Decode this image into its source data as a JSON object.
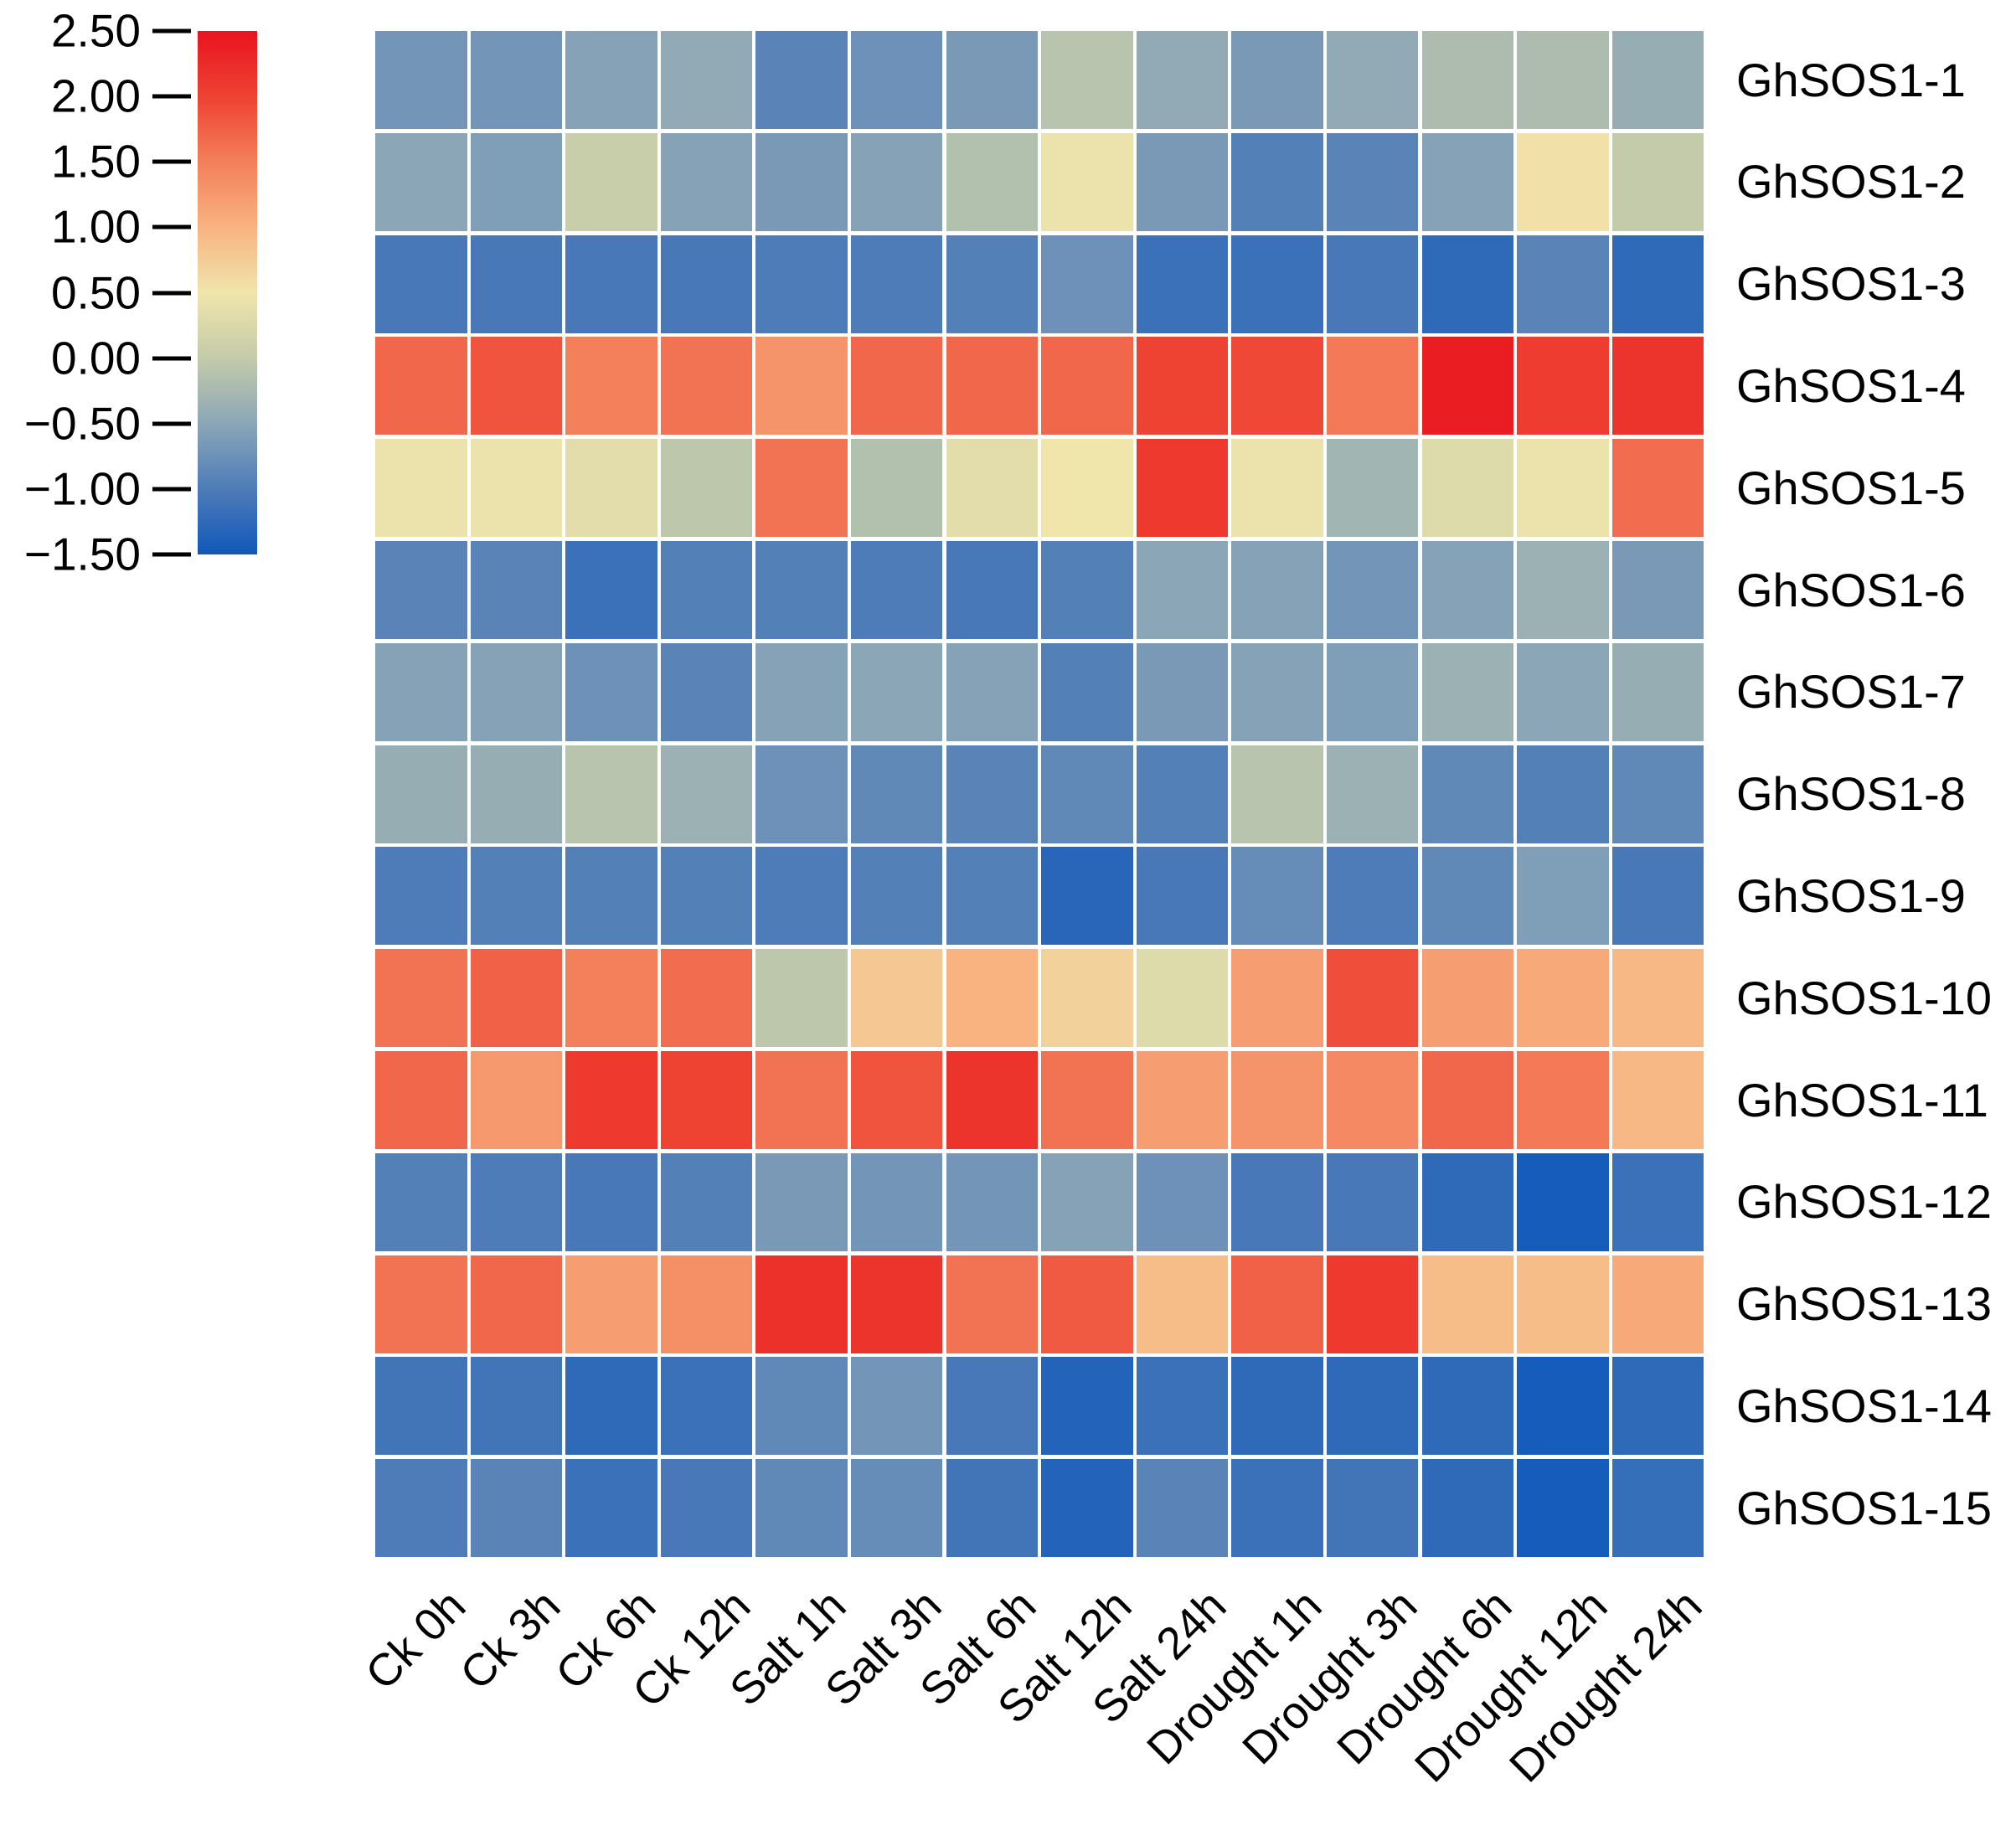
{
  "chart_data": {
    "type": "heatmap",
    "title": "",
    "rows": [
      "GhSOS1-1",
      "GhSOS1-2",
      "GhSOS1-3",
      "GhSOS1-4",
      "GhSOS1-5",
      "GhSOS1-6",
      "GhSOS1-7",
      "GhSOS1-8",
      "GhSOS1-9",
      "GhSOS1-10",
      "GhSOS1-11",
      "GhSOS1-12",
      "GhSOS1-13",
      "GhSOS1-14",
      "GhSOS1-15"
    ],
    "columns": [
      "Ck 0h",
      "Ck 3h",
      "Ck 6h",
      "Ck 12h",
      "Salt 1h",
      "Salt 3h",
      "Salt 6h",
      "Salt 12h",
      "Salt 24h",
      "Drought 1h",
      "Drought 3h",
      "Drought 6h",
      "Drought 12h",
      "Drought 24h"
    ],
    "values": [
      [
        -0.7,
        -0.7,
        -0.55,
        -0.45,
        -0.9,
        -0.75,
        -0.65,
        -0.1,
        -0.45,
        -0.65,
        -0.45,
        -0.2,
        -0.2,
        -0.4
      ],
      [
        -0.5,
        -0.6,
        0.05,
        -0.55,
        -0.65,
        -0.55,
        -0.15,
        0.45,
        -0.65,
        -0.95,
        -0.9,
        -0.55,
        0.55,
        0.0
      ],
      [
        -1.05,
        -1.05,
        -1.05,
        -1.05,
        -1.0,
        -1.0,
        -0.95,
        -0.75,
        -1.15,
        -1.15,
        -1.05,
        -1.25,
        -0.9,
        -1.25
      ],
      [
        1.7,
        1.85,
        1.5,
        1.6,
        1.3,
        1.7,
        1.7,
        1.7,
        2.0,
        1.95,
        1.55,
        2.4,
        2.05,
        2.15
      ],
      [
        0.45,
        0.45,
        0.35,
        -0.05,
        1.6,
        -0.15,
        0.35,
        0.5,
        2.1,
        0.45,
        -0.3,
        0.3,
        0.45,
        1.65
      ],
      [
        -0.9,
        -0.9,
        -1.15,
        -0.95,
        -0.95,
        -1.0,
        -1.05,
        -0.95,
        -0.5,
        -0.55,
        -0.7,
        -0.55,
        -0.35,
        -0.65
      ],
      [
        -0.55,
        -0.55,
        -0.75,
        -0.9,
        -0.55,
        -0.5,
        -0.55,
        -0.95,
        -0.65,
        -0.55,
        -0.6,
        -0.35,
        -0.5,
        -0.4
      ],
      [
        -0.4,
        -0.4,
        -0.1,
        -0.35,
        -0.75,
        -0.85,
        -0.9,
        -0.85,
        -0.95,
        -0.1,
        -0.35,
        -0.85,
        -0.95,
        -0.85
      ],
      [
        -1.0,
        -0.95,
        -0.95,
        -0.95,
        -1.0,
        -0.95,
        -0.95,
        -1.3,
        -1.05,
        -0.8,
        -1.0,
        -0.85,
        -0.6,
        -1.05
      ],
      [
        1.6,
        1.75,
        1.5,
        1.65,
        -0.05,
        0.8,
        1.0,
        0.7,
        0.3,
        1.2,
        1.9,
        1.2,
        1.1,
        0.95
      ],
      [
        1.7,
        1.25,
        2.1,
        2.0,
        1.6,
        1.85,
        2.15,
        1.6,
        1.2,
        1.3,
        1.4,
        1.7,
        1.55,
        0.95
      ],
      [
        -0.95,
        -1.0,
        -1.05,
        -0.95,
        -0.65,
        -0.7,
        -0.7,
        -0.55,
        -0.75,
        -1.05,
        -1.05,
        -1.25,
        -1.45,
        -1.15
      ],
      [
        1.6,
        1.7,
        1.2,
        1.35,
        2.2,
        2.15,
        1.6,
        1.8,
        0.9,
        1.75,
        2.1,
        0.9,
        0.9,
        1.1
      ],
      [
        -1.1,
        -1.1,
        -1.25,
        -1.15,
        -0.85,
        -0.7,
        -1.05,
        -1.35,
        -1.15,
        -1.25,
        -1.25,
        -1.25,
        -1.45,
        -1.25
      ],
      [
        -1.0,
        -0.9,
        -1.15,
        -1.05,
        -0.85,
        -0.8,
        -1.1,
        -1.35,
        -0.9,
        -1.15,
        -1.1,
        -1.25,
        -1.45,
        -1.2
      ]
    ],
    "value_range": [
      -1.5,
      2.5
    ],
    "colorbar_ticks": [
      "2.50",
      "2.00",
      "1.50",
      "1.00",
      "0.50",
      "0.00",
      "−0.50",
      "−1.00",
      "−1.50"
    ],
    "colormap_stops": [
      {
        "value": 2.5,
        "color": "#e9141f"
      },
      {
        "value": 2.0,
        "color": "#ee4232"
      },
      {
        "value": 1.5,
        "color": "#f37f5b"
      },
      {
        "value": 1.0,
        "color": "#f8b381"
      },
      {
        "value": 0.5,
        "color": "#f0e5ab"
      },
      {
        "value": 0.0,
        "color": "#c3cbaa"
      },
      {
        "value": -0.5,
        "color": "#8ba6b7"
      },
      {
        "value": -1.0,
        "color": "#4e7cb8"
      },
      {
        "value": -1.5,
        "color": "#1058ba"
      }
    ],
    "legend_position": "top-left",
    "grid": "white gaps between cells",
    "x_tick_rotation_deg": 45
  }
}
